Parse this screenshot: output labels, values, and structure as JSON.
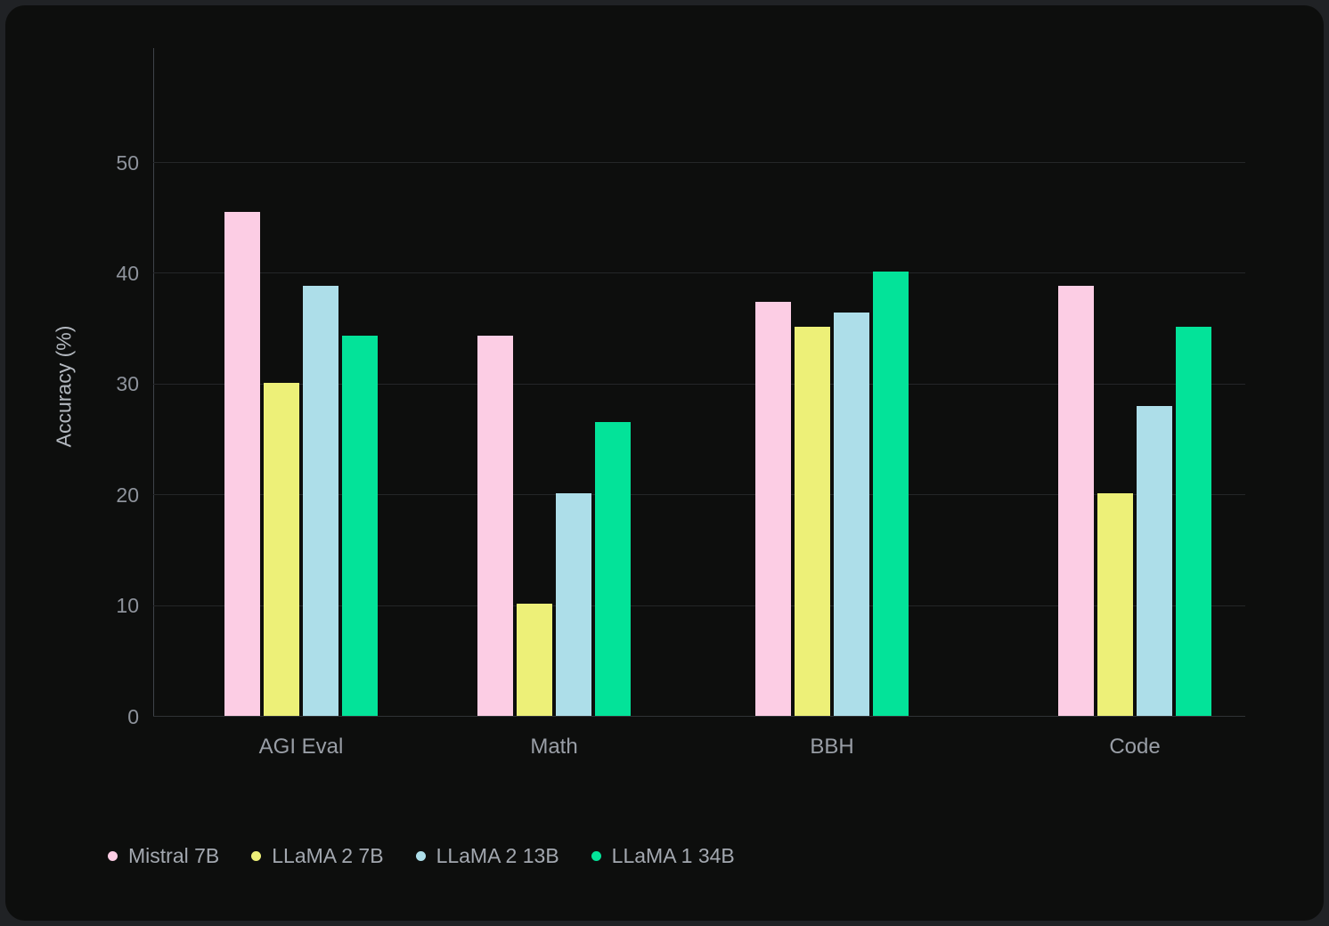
{
  "chart_data": {
    "type": "bar",
    "title": "",
    "ylabel": "Accuracy (%)",
    "categories": [
      "AGI Eval",
      "Math",
      "BBH",
      "Code"
    ],
    "series": [
      {
        "name": "Mistral 7B",
        "color": "#fccde4",
        "values": [
          45.5,
          34.3,
          37.4,
          38.8
        ]
      },
      {
        "name": "LLaMA 2 7B",
        "color": "#edf078",
        "values": [
          30.1,
          10.1,
          35.1,
          20.1
        ]
      },
      {
        "name": "LLaMA 2 13B",
        "color": "#addee9",
        "values": [
          38.8,
          20.1,
          36.4,
          28.0
        ]
      },
      {
        "name": "LLaMA 1 34B",
        "color": "#03e399",
        "values": [
          34.3,
          26.5,
          40.1,
          35.1
        ]
      }
    ],
    "yticks": [
      0,
      10,
      20,
      30,
      40,
      50
    ],
    "ylim": [
      0,
      60.4
    ],
    "grid": true,
    "legend_position": "bottom-left",
    "background": "#0d0e0d",
    "text_color": "#999ea6"
  }
}
